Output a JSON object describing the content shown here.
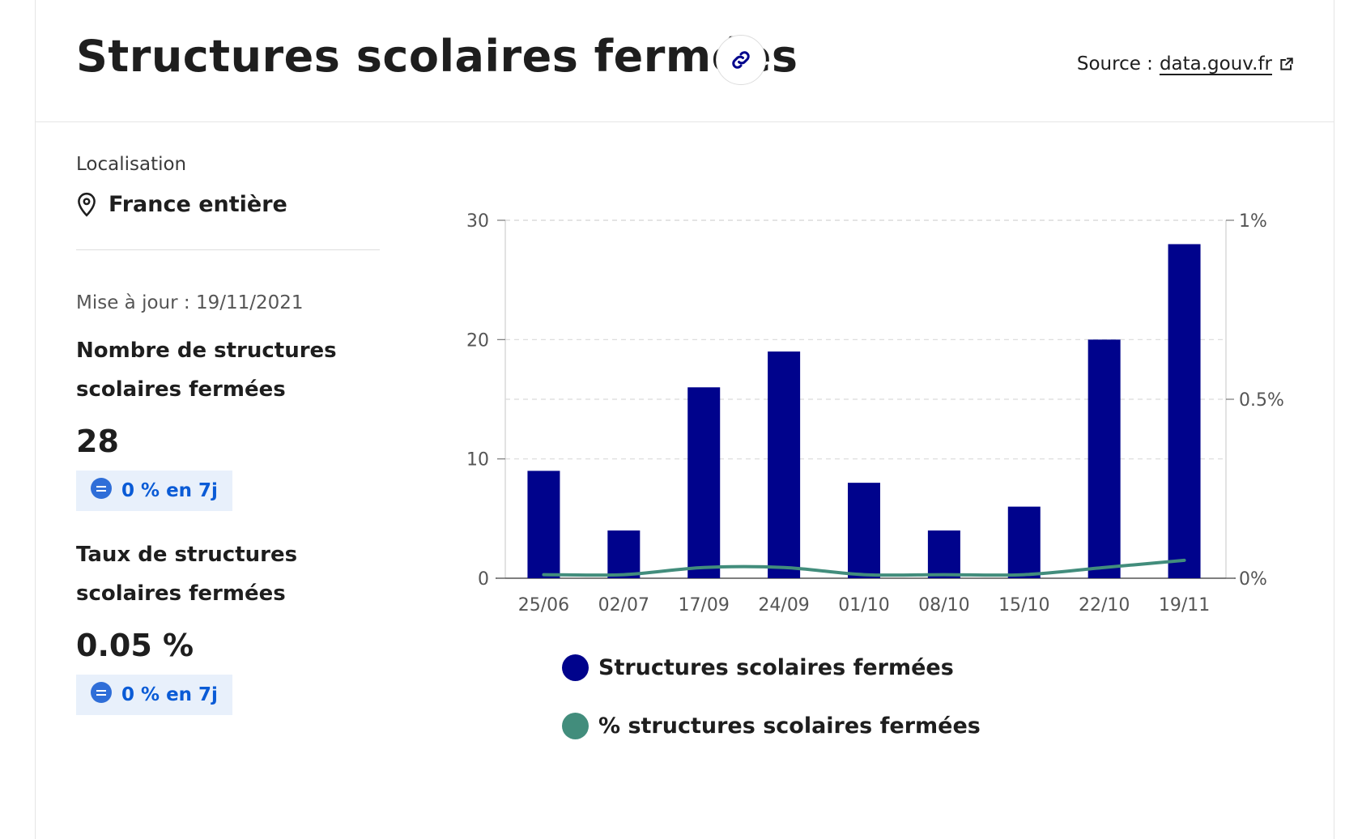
{
  "header": {
    "title": "Structures scolaires fermées",
    "source_label": "Source :",
    "source_link": "data.gouv.fr"
  },
  "icons": {
    "link": "link-icon",
    "external": "external-link-icon",
    "location": "map-pin-icon",
    "equal": "equal-icon"
  },
  "sidebar": {
    "location_label": "Localisation",
    "location_value": "France entière",
    "updated": "Mise à jour : 19/11/2021",
    "metric1": {
      "title_line1": "Nombre de structures",
      "title_line2": "scolaires fermées",
      "value": "28",
      "trend": "0 % en 7j"
    },
    "metric2": {
      "title_line1": "Taux de structures",
      "title_line2": "scolaires fermées",
      "value": "0.05 %",
      "trend": "0 % en 7j"
    }
  },
  "colors": {
    "bar": "#00038c",
    "line": "#428d7c",
    "badge_text": "#0a5bd6",
    "badge_bg": "#e8f0fb"
  },
  "chart_data": {
    "type": "bar",
    "categories": [
      "25/06",
      "02/07",
      "17/09",
      "24/09",
      "01/10",
      "08/10",
      "15/10",
      "22/10",
      "19/11"
    ],
    "series": [
      {
        "name": "Structures scolaires fermées",
        "type": "bar",
        "axis": "left",
        "values": [
          9,
          4,
          16,
          19,
          8,
          4,
          6,
          20,
          28
        ]
      },
      {
        "name": "% structures scolaires fermées",
        "type": "line",
        "axis": "right",
        "values": [
          0.01,
          0.01,
          0.03,
          0.03,
          0.01,
          0.01,
          0.01,
          0.03,
          0.05
        ]
      }
    ],
    "y_left": {
      "min": 0,
      "max": 30,
      "ticks": [
        "0",
        "10",
        "20",
        "30"
      ],
      "tick_values": [
        0,
        10,
        20,
        30
      ]
    },
    "y_right": {
      "min": 0,
      "max": 1,
      "ticks": [
        "0%",
        "0.5%",
        "1%"
      ],
      "tick_values": [
        0,
        0.5,
        1
      ]
    },
    "grid": true,
    "legend_position": "bottom-left"
  }
}
